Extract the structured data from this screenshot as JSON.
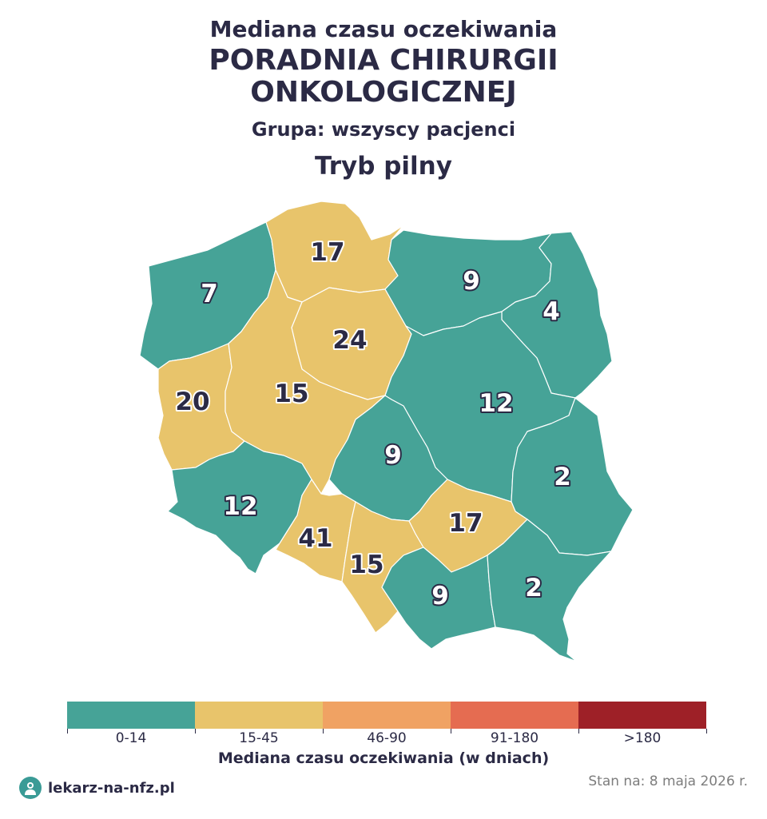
{
  "title_line1": "Mediana czasu oczekiwania",
  "title_line2a": "PORADNIA CHIRURGII",
  "title_line2b": "ONKOLOGICZNEJ",
  "subtitle_group": "Grupa: wszyscy pacjenci",
  "subtitle_mode": "Tryb pilny",
  "colors": {
    "c0_14": "#46a397",
    "c15_45": "#e8c46b",
    "c46_90": "#f0a263",
    "c91_180": "#e56c51",
    "c180plus": "#9e2027"
  },
  "regions": [
    {
      "id": "zachodniopomorskie",
      "value": "7",
      "bin": "c0_14"
    },
    {
      "id": "pomorskie",
      "value": "17",
      "bin": "c15_45"
    },
    {
      "id": "warminsko-mazurskie",
      "value": "9",
      "bin": "c0_14"
    },
    {
      "id": "podlaskie",
      "value": "4",
      "bin": "c0_14"
    },
    {
      "id": "kujawsko-pomorskie",
      "value": "24",
      "bin": "c15_45"
    },
    {
      "id": "lubuskie",
      "value": "20",
      "bin": "c15_45"
    },
    {
      "id": "wielkopolskie",
      "value": "15",
      "bin": "c15_45"
    },
    {
      "id": "mazowieckie",
      "value": "12",
      "bin": "c0_14"
    },
    {
      "id": "lodzkie",
      "value": "9",
      "bin": "c0_14"
    },
    {
      "id": "lubelskie",
      "value": "2",
      "bin": "c0_14"
    },
    {
      "id": "dolnoslaskie",
      "value": "12",
      "bin": "c0_14"
    },
    {
      "id": "opolskie",
      "value": "41",
      "bin": "c15_45"
    },
    {
      "id": "slaskie",
      "value": "15",
      "bin": "c15_45"
    },
    {
      "id": "swietokrzyskie",
      "value": "17",
      "bin": "c15_45"
    },
    {
      "id": "malopolskie",
      "value": "9",
      "bin": "c0_14"
    },
    {
      "id": "podkarpackie",
      "value": "2",
      "bin": "c0_14"
    }
  ],
  "legend": {
    "title": "Mediana czasu oczekiwania (w dniach)",
    "bins": [
      {
        "label": "0-14",
        "color": "#46a397"
      },
      {
        "label": "15-45",
        "color": "#e8c46b"
      },
      {
        "label": "46-90",
        "color": "#f0a263"
      },
      {
        "label": "91-180",
        "color": "#e56c51"
      },
      {
        "label": ">180",
        "color": "#9e2027"
      }
    ]
  },
  "footer": {
    "logo_text": "lekarz-na-nfz.pl",
    "logo_icon": "doctor-avatar-icon",
    "date_text": "Stan na: 8 maja 2026 r."
  }
}
